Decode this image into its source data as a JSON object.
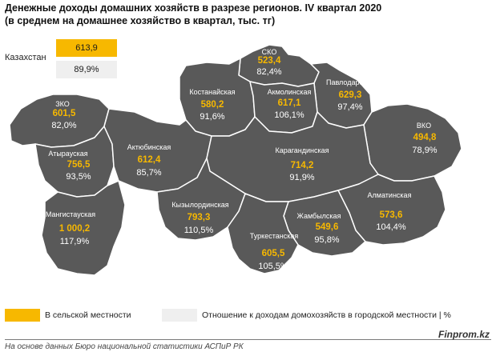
{
  "title": "Денежные доходы домашних хозяйств в разрезе регионов. IV квартал 2020",
  "subtitle": "(в среднем на домашнее хозяйство в квартал, тыс. тг)",
  "kazakhstan": {
    "label": "Казахстан",
    "value": "613,9",
    "ratio": "89,9%"
  },
  "colors": {
    "region_fill": "#595959",
    "border": "#ffffff",
    "value": "#f7b800",
    "ratio_box": "#efefef"
  },
  "regions": [
    {
      "name": "СКО",
      "value": "523,4",
      "ratio": "82,4%"
    },
    {
      "name": "Павлодарская",
      "value": "629,3",
      "ratio": "97,4%"
    },
    {
      "name": "Костанайская",
      "value": "580,2",
      "ratio": "91,6%"
    },
    {
      "name": "Акмолинская",
      "value": "617,1",
      "ratio": "106,1%"
    },
    {
      "name": "ЗКО",
      "value": "601,5",
      "ratio": "82,0%"
    },
    {
      "name": "ВКО",
      "value": "494,8",
      "ratio": "78,9%"
    },
    {
      "name": "Атырауская",
      "value": "756,5",
      "ratio": "93,5%"
    },
    {
      "name": "Актюбинская",
      "value": "612,4",
      "ratio": "85,7%"
    },
    {
      "name": "Карагандинская",
      "value": "714,2",
      "ratio": "91,9%"
    },
    {
      "name": "Кызылординская",
      "value": "793,3",
      "ratio": "110,5%"
    },
    {
      "name": "Алматинская",
      "value": "573,6",
      "ratio": "104,4%"
    },
    {
      "name": "Мангистауская",
      "value": "1 000,2",
      "ratio": "117,9%"
    },
    {
      "name": "Жамбылская",
      "value": "549,6",
      "ratio": "95,8%"
    },
    {
      "name": "Туркестанская",
      "value": "605,5",
      "ratio": "105,5%"
    }
  ],
  "legend": {
    "rural_label": "В сельской местности",
    "ratio_label": "Отношение к доходам домохозяйств в городской местности | %"
  },
  "brand": "Finprom.kz",
  "source": "На основе данных Бюро национальной статистики АСПиР РК"
}
